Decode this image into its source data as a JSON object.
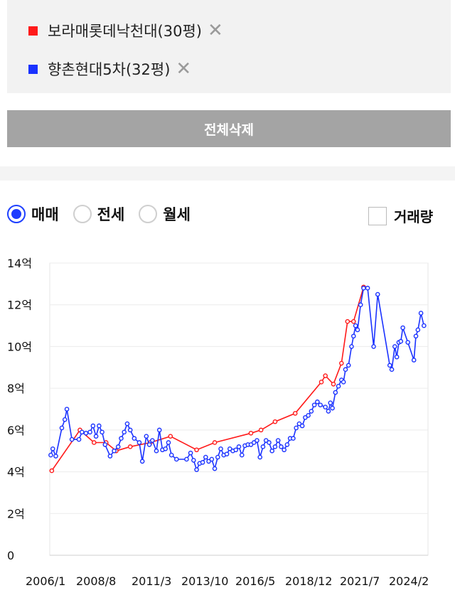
{
  "legend": {
    "items": [
      {
        "label": "보라매롯데낙천대(30평)",
        "color": "#ff1a1a"
      },
      {
        "label": "향촌현대5차(32평)",
        "color": "#1a32ff"
      }
    ],
    "remove_icon": "close-icon"
  },
  "actions": {
    "delete_all_label": "전체삭제"
  },
  "options": {
    "trade_types": [
      {
        "label": "매매",
        "selected": true
      },
      {
        "label": "전세",
        "selected": false
      },
      {
        "label": "월세",
        "selected": false
      }
    ],
    "volume_label": "거래량",
    "volume_checked": false
  },
  "chart_data": {
    "type": "line",
    "y_ticks": [
      "0",
      "2억",
      "4억",
      "6억",
      "8억",
      "10억",
      "12억",
      "14억"
    ],
    "y_unit_values": [
      0,
      2,
      4,
      6,
      8,
      10,
      12,
      14
    ],
    "x_ticks": [
      "2006/1",
      "2008/8",
      "2011/3",
      "2013/10",
      "2016/5",
      "2018/12",
      "2021/7",
      "2024/2"
    ],
    "ylim": [
      0,
      14
    ],
    "xlim": [
      2006.0,
      2024.8
    ],
    "grid": true,
    "series": [
      {
        "color": "#ff1a1a",
        "points": [
          [
            2006.1,
            4.05
          ],
          [
            2007.5,
            6.0
          ],
          [
            2008.2,
            5.4
          ],
          [
            2008.8,
            5.4
          ],
          [
            2009.3,
            5.0
          ],
          [
            2010.0,
            5.2
          ],
          [
            2011.0,
            5.4
          ],
          [
            2012.0,
            5.7
          ],
          [
            2013.3,
            5.05
          ],
          [
            2014.2,
            5.4
          ],
          [
            2016.0,
            5.85
          ],
          [
            2016.5,
            6.0
          ],
          [
            2017.2,
            6.4
          ],
          [
            2018.2,
            6.8
          ],
          [
            2019.5,
            8.3
          ],
          [
            2019.7,
            8.6
          ],
          [
            2020.1,
            8.2
          ],
          [
            2020.5,
            9.2
          ],
          [
            2020.8,
            11.2
          ],
          [
            2021.1,
            11.2
          ],
          [
            2021.6,
            12.85
          ]
        ]
      },
      {
        "color": "#1a32ff",
        "points": [
          [
            2006.05,
            4.8
          ],
          [
            2006.15,
            5.1
          ],
          [
            2006.3,
            4.75
          ],
          [
            2006.6,
            6.1
          ],
          [
            2006.75,
            6.5
          ],
          [
            2006.85,
            7.0
          ],
          [
            2007.1,
            5.55
          ],
          [
            2007.45,
            5.55
          ],
          [
            2007.6,
            5.9
          ],
          [
            2007.8,
            5.85
          ],
          [
            2008.0,
            5.9
          ],
          [
            2008.15,
            6.2
          ],
          [
            2008.3,
            5.7
          ],
          [
            2008.45,
            6.2
          ],
          [
            2008.6,
            5.9
          ],
          [
            2008.75,
            5.3
          ],
          [
            2009.0,
            4.75
          ],
          [
            2009.2,
            5.0
          ],
          [
            2009.4,
            5.2
          ],
          [
            2009.55,
            5.6
          ],
          [
            2009.7,
            5.9
          ],
          [
            2009.85,
            6.3
          ],
          [
            2010.0,
            6.0
          ],
          [
            2010.2,
            5.6
          ],
          [
            2010.45,
            5.4
          ],
          [
            2010.6,
            4.5
          ],
          [
            2010.8,
            5.7
          ],
          [
            2010.95,
            5.3
          ],
          [
            2011.1,
            5.5
          ],
          [
            2011.3,
            5.0
          ],
          [
            2011.45,
            6.0
          ],
          [
            2011.6,
            5.05
          ],
          [
            2011.75,
            5.1
          ],
          [
            2011.9,
            5.4
          ],
          [
            2012.05,
            4.8
          ],
          [
            2012.3,
            4.6
          ],
          [
            2012.8,
            4.6
          ],
          [
            2013.0,
            4.9
          ],
          [
            2013.15,
            4.55
          ],
          [
            2013.3,
            4.1
          ],
          [
            2013.45,
            4.4
          ],
          [
            2013.6,
            4.45
          ],
          [
            2013.75,
            4.7
          ],
          [
            2013.9,
            4.5
          ],
          [
            2014.05,
            4.6
          ],
          [
            2014.2,
            4.15
          ],
          [
            2014.35,
            4.7
          ],
          [
            2014.5,
            5.1
          ],
          [
            2014.65,
            4.8
          ],
          [
            2014.8,
            4.85
          ],
          [
            2014.95,
            5.1
          ],
          [
            2015.1,
            5.0
          ],
          [
            2015.25,
            5.05
          ],
          [
            2015.4,
            5.2
          ],
          [
            2015.55,
            4.8
          ],
          [
            2015.7,
            5.25
          ],
          [
            2015.85,
            5.3
          ],
          [
            2016.0,
            5.3
          ],
          [
            2016.15,
            5.4
          ],
          [
            2016.3,
            5.5
          ],
          [
            2016.45,
            4.7
          ],
          [
            2016.6,
            5.2
          ],
          [
            2016.75,
            5.5
          ],
          [
            2016.9,
            5.4
          ],
          [
            2017.05,
            5.0
          ],
          [
            2017.2,
            5.2
          ],
          [
            2017.35,
            5.5
          ],
          [
            2017.5,
            5.2
          ],
          [
            2017.65,
            5.05
          ],
          [
            2017.8,
            5.3
          ],
          [
            2017.95,
            5.6
          ],
          [
            2018.1,
            5.6
          ],
          [
            2018.25,
            6.1
          ],
          [
            2018.4,
            6.3
          ],
          [
            2018.55,
            6.2
          ],
          [
            2018.7,
            6.6
          ],
          [
            2018.85,
            6.7
          ],
          [
            2019.0,
            6.9
          ],
          [
            2019.15,
            7.2
          ],
          [
            2019.3,
            7.35
          ],
          [
            2019.45,
            7.2
          ],
          [
            2019.7,
            7.1
          ],
          [
            2019.85,
            6.9
          ],
          [
            2019.95,
            7.3
          ],
          [
            2020.05,
            7.05
          ],
          [
            2020.2,
            7.8
          ],
          [
            2020.35,
            8.1
          ],
          [
            2020.5,
            8.4
          ],
          [
            2020.6,
            8.3
          ],
          [
            2020.7,
            8.9
          ],
          [
            2020.85,
            9.1
          ],
          [
            2021.0,
            10.0
          ],
          [
            2021.1,
            10.5
          ],
          [
            2021.2,
            11.0
          ],
          [
            2021.3,
            10.8
          ],
          [
            2021.45,
            12.0
          ],
          [
            2021.6,
            12.8
          ],
          [
            2021.8,
            12.8
          ],
          [
            2022.1,
            10.0
          ],
          [
            2022.3,
            12.5
          ],
          [
            2022.9,
            9.1
          ],
          [
            2023.0,
            8.9
          ],
          [
            2023.15,
            10.0
          ],
          [
            2023.25,
            9.5
          ],
          [
            2023.35,
            10.2
          ],
          [
            2023.45,
            10.25
          ],
          [
            2023.55,
            10.9
          ],
          [
            2023.8,
            10.2
          ],
          [
            2024.1,
            9.35
          ],
          [
            2024.2,
            10.5
          ],
          [
            2024.3,
            10.8
          ],
          [
            2024.45,
            11.6
          ],
          [
            2024.6,
            11.0
          ]
        ]
      }
    ]
  }
}
